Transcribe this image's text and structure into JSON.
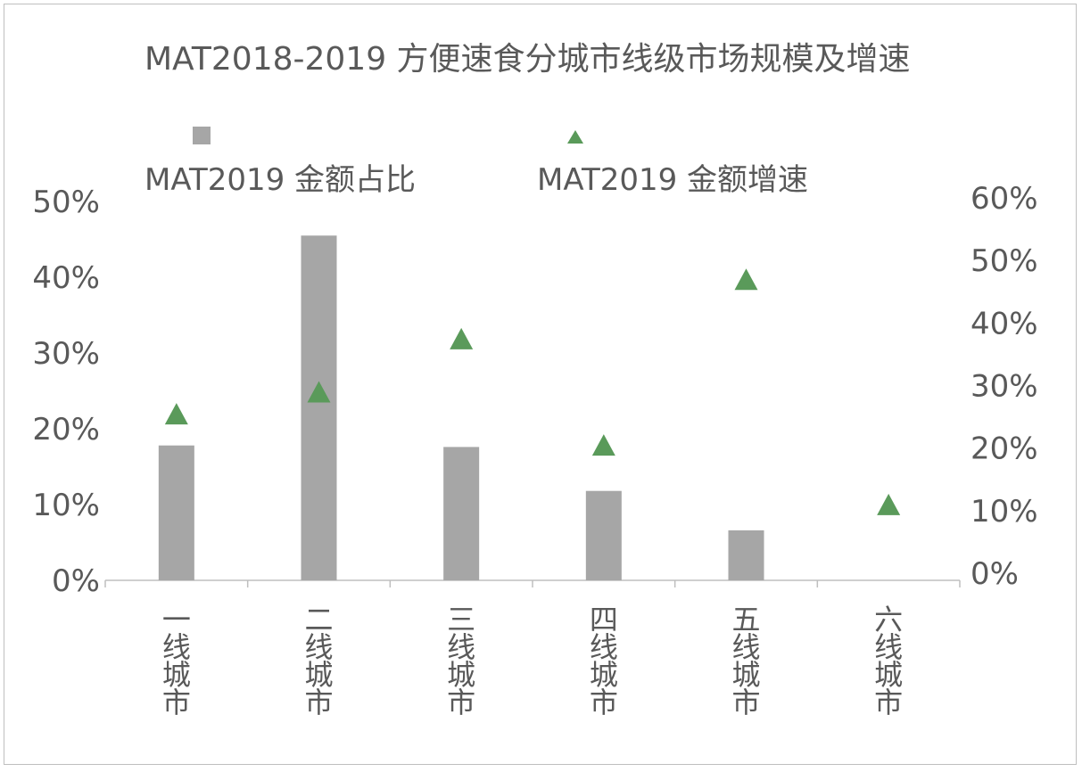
{
  "chart_data": {
    "type": "bar",
    "title": "MAT2018-2019 方便速食分城市线级市场规模及增速",
    "categories": [
      "一线城市",
      "二线城市",
      "三线城市",
      "四线城市",
      "五线城市",
      "六线城市"
    ],
    "series": [
      {
        "name": "MAT2019 金额占比",
        "type": "bar",
        "axis": "left",
        "color": "#a6a6a6",
        "values": [
          17.8,
          45.5,
          17.6,
          11.8,
          6.6,
          0
        ]
      },
      {
        "name": "MAT2019 金额增速",
        "type": "scatter",
        "marker": "triangle",
        "axis": "right",
        "color": "#5a9a5a",
        "values": [
          25.5,
          29.0,
          37.5,
          20.5,
          47.0,
          11.0
        ]
      }
    ],
    "y_left": {
      "ylim": [
        0,
        50
      ],
      "ticks": [
        "0%",
        "10%",
        "20%",
        "30%",
        "40%",
        "50%"
      ]
    },
    "y_right": {
      "ylim": [
        0,
        60
      ],
      "ticks": [
        "0%",
        "10%",
        "20%",
        "30%",
        "40%",
        "50%",
        "60%"
      ]
    },
    "legend_position": "top",
    "grid": false
  }
}
